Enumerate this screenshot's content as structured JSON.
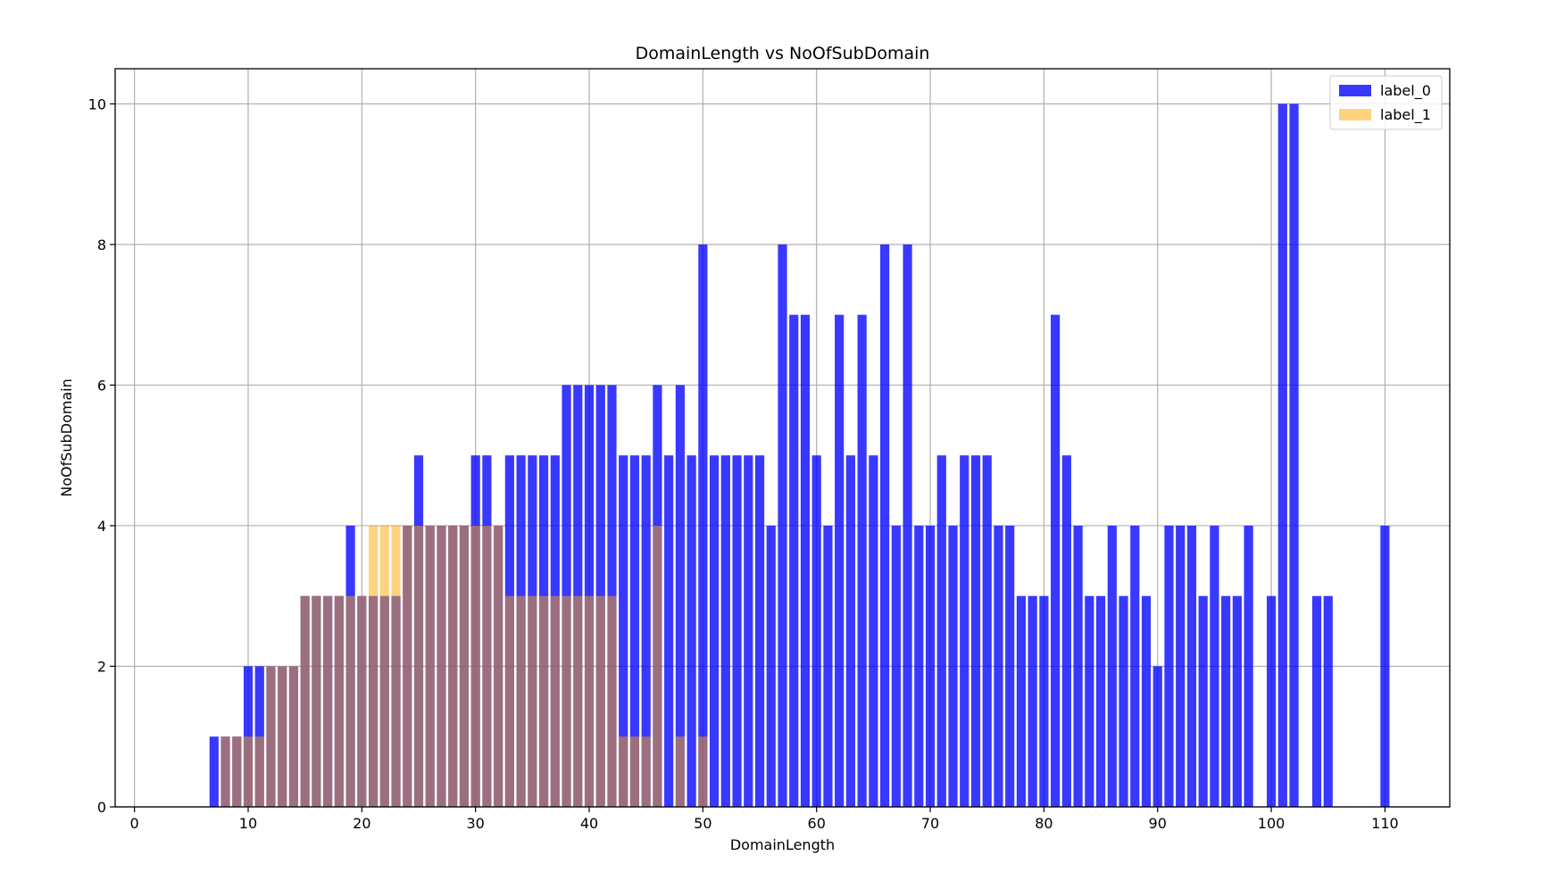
{
  "chart_data": {
    "type": "bar",
    "title": "DomainLength vs NoOfSubDomain",
    "xlabel": "DomainLength",
    "ylabel": "NoOfSubDomain",
    "xlim": [
      -1.7,
      115.7
    ],
    "ylim": [
      0,
      10.5
    ],
    "xticks": [
      0,
      10,
      20,
      30,
      40,
      50,
      60,
      70,
      80,
      90,
      100,
      110
    ],
    "yticks": [
      0,
      2,
      4,
      6,
      8,
      10
    ],
    "grid": true,
    "legend_position": "top-right",
    "series": [
      {
        "name": "label_0",
        "color": "#0000ff",
        "opacity": 0.78,
        "x": [
          7,
          8,
          9,
          10,
          11,
          12,
          13,
          14,
          15,
          16,
          17,
          18,
          19,
          20,
          21,
          22,
          23,
          24,
          25,
          26,
          27,
          28,
          29,
          30,
          31,
          32,
          33,
          34,
          35,
          36,
          37,
          38,
          39,
          40,
          41,
          42,
          43,
          44,
          45,
          46,
          47,
          48,
          49,
          50,
          51,
          52,
          53,
          54,
          55,
          56,
          57,
          58,
          59,
          60,
          61,
          62,
          63,
          64,
          65,
          66,
          67,
          68,
          69,
          70,
          71,
          72,
          73,
          74,
          75,
          76,
          77,
          78,
          79,
          80,
          81,
          82,
          83,
          84,
          85,
          86,
          87,
          88,
          89,
          90,
          91,
          92,
          93,
          94,
          95,
          96,
          97,
          98,
          100,
          101,
          102,
          104,
          105,
          110
        ],
        "values": [
          1,
          1,
          1,
          2,
          2,
          2,
          2,
          2,
          3,
          3,
          3,
          3,
          4,
          3,
          3,
          3,
          3,
          4,
          5,
          4,
          4,
          4,
          4,
          5,
          5,
          4,
          5,
          5,
          5,
          5,
          5,
          6,
          6,
          6,
          6,
          6,
          5,
          5,
          5,
          6,
          5,
          6,
          5,
          8,
          5,
          5,
          5,
          5,
          5,
          4,
          8,
          7,
          7,
          5,
          4,
          7,
          5,
          7,
          5,
          8,
          4,
          8,
          4,
          4,
          5,
          4,
          5,
          5,
          5,
          4,
          4,
          3,
          3,
          3,
          7,
          5,
          4,
          3,
          3,
          4,
          3,
          4,
          3,
          2,
          4,
          4,
          4,
          3,
          4,
          3,
          3,
          4,
          3,
          10,
          10,
          3,
          3,
          4
        ]
      },
      {
        "name": "label_1",
        "color": "#ffa500",
        "opacity": 0.5,
        "x": [
          8,
          9,
          10,
          11,
          12,
          13,
          14,
          15,
          16,
          17,
          18,
          19,
          20,
          21,
          22,
          23,
          24,
          25,
          26,
          27,
          28,
          29,
          30,
          31,
          32,
          33,
          34,
          35,
          36,
          37,
          38,
          39,
          40,
          41,
          42,
          43,
          44,
          45,
          46,
          48,
          50
        ],
        "values": [
          1,
          1,
          1,
          1,
          2,
          2,
          2,
          3,
          3,
          3,
          3,
          3,
          3,
          4,
          4,
          4,
          4,
          4,
          4,
          4,
          4,
          4,
          4,
          4,
          4,
          3,
          3,
          3,
          3,
          3,
          3,
          3,
          3,
          3,
          3,
          1,
          1,
          1,
          4,
          1,
          1
        ]
      }
    ]
  }
}
